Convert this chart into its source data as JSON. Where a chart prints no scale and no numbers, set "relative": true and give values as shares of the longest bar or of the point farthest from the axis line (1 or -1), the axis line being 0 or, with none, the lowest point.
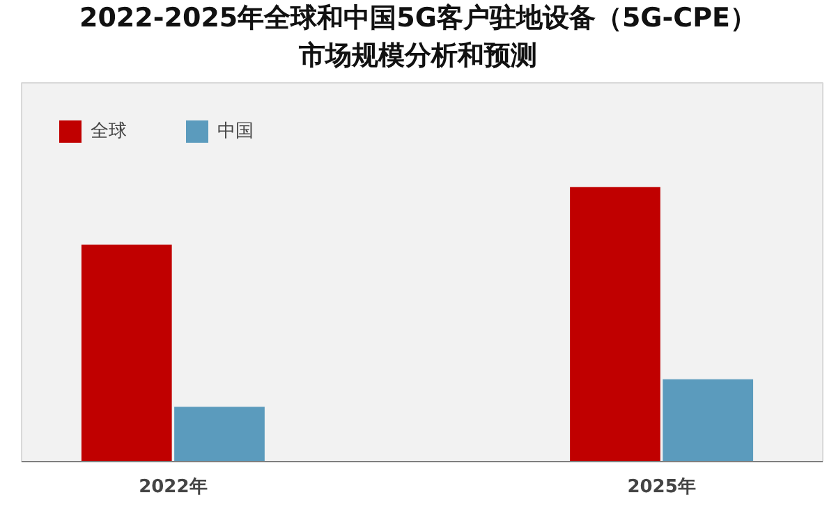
{
  "chart_data": {
    "type": "bar",
    "title": "2022-2025年全球和中国5G客户驻地设备（5G-CPE）",
    "subtitle": "市场规模分析和预测",
    "categories": [
      "2022年",
      "2025年"
    ],
    "relative": true,
    "series": [
      {
        "name": "全球",
        "color": "#c00000",
        "values": [
          0.79,
          1
        ]
      },
      {
        "name": "中国",
        "color": "#5b9bbd",
        "values": [
          0.2,
          0.3
        ]
      }
    ],
    "legend": "top left"
  }
}
